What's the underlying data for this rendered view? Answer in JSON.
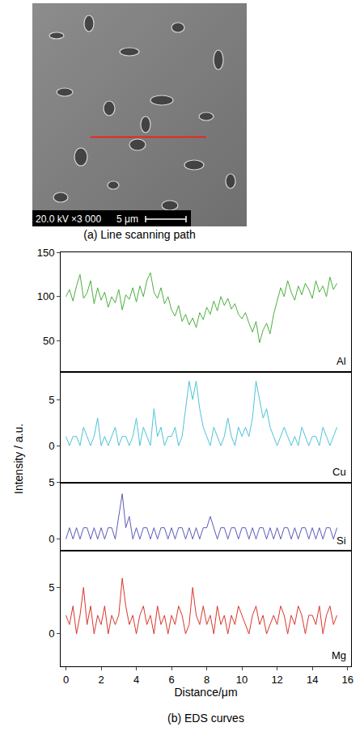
{
  "panel_a": {
    "info": "20.0 kV ×3 000",
    "scale_bar": "5 μm",
    "caption": "(a) Line scanning path"
  },
  "panel_b": {
    "caption": "(b) EDS curves",
    "xlabel": "Distance/μm",
    "ylabel": "Intensity / a.u."
  },
  "chart_data": [
    {
      "type": "line",
      "name": "Al",
      "color": "#4daf3f",
      "tick_labels": "y",
      "xlim": [
        -0.3,
        16.2
      ],
      "ylim": [
        15,
        150
      ],
      "yticks": [
        50,
        100,
        150
      ],
      "x": [
        0,
        0.2,
        0.4,
        0.6,
        0.8,
        1,
        1.2,
        1.4,
        1.6,
        1.8,
        2,
        2.2,
        2.4,
        2.6,
        2.8,
        3,
        3.2,
        3.4,
        3.6,
        3.8,
        4,
        4.2,
        4.4,
        4.6,
        4.8,
        5,
        5.2,
        5.4,
        5.6,
        5.8,
        6,
        6.2,
        6.4,
        6.6,
        6.8,
        7,
        7.2,
        7.4,
        7.6,
        7.8,
        8,
        8.2,
        8.4,
        8.6,
        8.8,
        9,
        9.2,
        9.4,
        9.6,
        9.8,
        10,
        10.2,
        10.4,
        10.6,
        10.8,
        11,
        11.2,
        11.4,
        11.6,
        11.8,
        12,
        12.2,
        12.4,
        12.6,
        12.8,
        13,
        13.2,
        13.4,
        13.6,
        13.8,
        14,
        14.2,
        14.4,
        14.6,
        14.8,
        15,
        15.2,
        15.4
      ],
      "values": [
        100,
        108,
        95,
        112,
        125,
        98,
        104,
        118,
        92,
        110,
        96,
        105,
        88,
        100,
        93,
        108,
        85,
        102,
        97,
        110,
        94,
        112,
        100,
        118,
        127,
        105,
        98,
        110,
        92,
        100,
        85,
        78,
        90,
        72,
        80,
        68,
        76,
        65,
        82,
        74,
        88,
        80,
        95,
        84,
        100,
        90,
        98,
        86,
        92,
        80,
        75,
        82,
        70,
        60,
        72,
        48,
        62,
        70,
        58,
        80,
        95,
        110,
        100,
        118,
        105,
        96,
        112,
        102,
        115,
        108,
        98,
        118,
        105,
        112,
        100,
        122,
        108,
        115
      ]
    },
    {
      "type": "line",
      "name": "Cu",
      "color": "#4cc3d6",
      "tick_labels": "y",
      "xlim": [
        -0.3,
        16.2
      ],
      "ylim": [
        -4,
        8
      ],
      "yticks": [
        0,
        5
      ],
      "x": [
        0,
        0.2,
        0.4,
        0.6,
        0.8,
        1,
        1.2,
        1.4,
        1.6,
        1.8,
        2,
        2.2,
        2.4,
        2.6,
        2.8,
        3,
        3.2,
        3.4,
        3.6,
        3.8,
        4,
        4.2,
        4.4,
        4.6,
        4.8,
        5,
        5.2,
        5.4,
        5.6,
        5.8,
        6,
        6.2,
        6.4,
        6.6,
        6.8,
        7,
        7.2,
        7.4,
        7.6,
        7.8,
        8,
        8.2,
        8.4,
        8.6,
        8.8,
        9,
        9.2,
        9.4,
        9.6,
        9.8,
        10,
        10.2,
        10.4,
        10.6,
        10.8,
        11,
        11.2,
        11.4,
        11.6,
        11.8,
        12,
        12.2,
        12.4,
        12.6,
        12.8,
        13,
        13.2,
        13.4,
        13.6,
        13.8,
        14,
        14.2,
        14.4,
        14.6,
        14.8,
        15,
        15.2,
        15.4
      ],
      "values": [
        1,
        0,
        1,
        1,
        0,
        2,
        1,
        0,
        1,
        3,
        0,
        1,
        0,
        1,
        2,
        0,
        1,
        1,
        0,
        1,
        3,
        0,
        2,
        1,
        0,
        4,
        1,
        2,
        0,
        1,
        1,
        2,
        0,
        1,
        4,
        7,
        5,
        7,
        4,
        2,
        1,
        0,
        2,
        1,
        0,
        1,
        3,
        1,
        0,
        2,
        1,
        2,
        1,
        3,
        7,
        5,
        3,
        4,
        2,
        1,
        0,
        1,
        2,
        1,
        0,
        1,
        0,
        2,
        1,
        0,
        1,
        1,
        0,
        2,
        1,
        0,
        1,
        2
      ]
    },
    {
      "type": "line",
      "name": "Si",
      "color": "#5a5ab8",
      "tick_labels": "y",
      "xlim": [
        -0.3,
        16.2
      ],
      "ylim": [
        -1,
        5
      ],
      "yticks": [
        0,
        5
      ],
      "x": [
        0,
        0.2,
        0.4,
        0.6,
        0.8,
        1,
        1.2,
        1.4,
        1.6,
        1.8,
        2,
        2.2,
        2.4,
        2.6,
        2.8,
        3,
        3.2,
        3.4,
        3.6,
        3.8,
        4,
        4.2,
        4.4,
        4.6,
        4.8,
        5,
        5.2,
        5.4,
        5.6,
        5.8,
        6,
        6.2,
        6.4,
        6.6,
        6.8,
        7,
        7.2,
        7.4,
        7.6,
        7.8,
        8,
        8.2,
        8.4,
        8.6,
        8.8,
        9,
        9.2,
        9.4,
        9.6,
        9.8,
        10,
        10.2,
        10.4,
        10.6,
        10.8,
        11,
        11.2,
        11.4,
        11.6,
        11.8,
        12,
        12.2,
        12.4,
        12.6,
        12.8,
        13,
        13.2,
        13.4,
        13.6,
        13.8,
        14,
        14.2,
        14.4,
        14.6,
        14.8,
        15,
        15.2,
        15.4
      ],
      "values": [
        0,
        1,
        0,
        1,
        0,
        1,
        1,
        0,
        1,
        0,
        1,
        0,
        1,
        1,
        0,
        2,
        4,
        1,
        2,
        0,
        1,
        0,
        1,
        1,
        0,
        1,
        0,
        1,
        1,
        0,
        1,
        0,
        1,
        1,
        0,
        1,
        0,
        1,
        0,
        1,
        1,
        2,
        1,
        0,
        1,
        1,
        0,
        1,
        1,
        0,
        1,
        1,
        0,
        1,
        0,
        1,
        1,
        0,
        1,
        0,
        1,
        0,
        1,
        1,
        0,
        1,
        0,
        1,
        1,
        0,
        1,
        0,
        1,
        0,
        1,
        1,
        0,
        1
      ]
    },
    {
      "type": "line",
      "name": "Mg",
      "color": "#d9362b",
      "xlim": [
        -0.3,
        16.2
      ],
      "ylim": [
        -3.5,
        9
      ],
      "yticks": [
        0,
        5
      ],
      "xticks": [
        0,
        2,
        4,
        6,
        8,
        10,
        12,
        14,
        16
      ],
      "x": [
        0,
        0.2,
        0.4,
        0.6,
        0.8,
        1,
        1.2,
        1.4,
        1.6,
        1.8,
        2,
        2.2,
        2.4,
        2.6,
        2.8,
        3,
        3.2,
        3.4,
        3.6,
        3.8,
        4,
        4.2,
        4.4,
        4.6,
        4.8,
        5,
        5.2,
        5.4,
        5.6,
        5.8,
        6,
        6.2,
        6.4,
        6.6,
        6.8,
        7,
        7.2,
        7.4,
        7.6,
        7.8,
        8,
        8.2,
        8.4,
        8.6,
        8.8,
        9,
        9.2,
        9.4,
        9.6,
        9.8,
        10,
        10.2,
        10.4,
        10.6,
        10.8,
        11,
        11.2,
        11.4,
        11.6,
        11.8,
        12,
        12.2,
        12.4,
        12.6,
        12.8,
        13,
        13.2,
        13.4,
        13.6,
        13.8,
        14,
        14.2,
        14.4,
        14.6,
        14.8,
        15,
        15.2,
        15.4
      ],
      "values": [
        2,
        1,
        3,
        0,
        2,
        5,
        1,
        3,
        0,
        2,
        1,
        3,
        0,
        2,
        1,
        2,
        6,
        3,
        1,
        2,
        0,
        2,
        3,
        1,
        2,
        0,
        3,
        1,
        2,
        0,
        2,
        1,
        3,
        2,
        0,
        1,
        5,
        2,
        1,
        3,
        1,
        2,
        0,
        3,
        1,
        2,
        0,
        2,
        1,
        3,
        2,
        1,
        0,
        2,
        3,
        1,
        2,
        0,
        1,
        2,
        1,
        3,
        2,
        0,
        2,
        1,
        3,
        2,
        0,
        2,
        2,
        1,
        3,
        0,
        2,
        3,
        1,
        2
      ]
    }
  ]
}
